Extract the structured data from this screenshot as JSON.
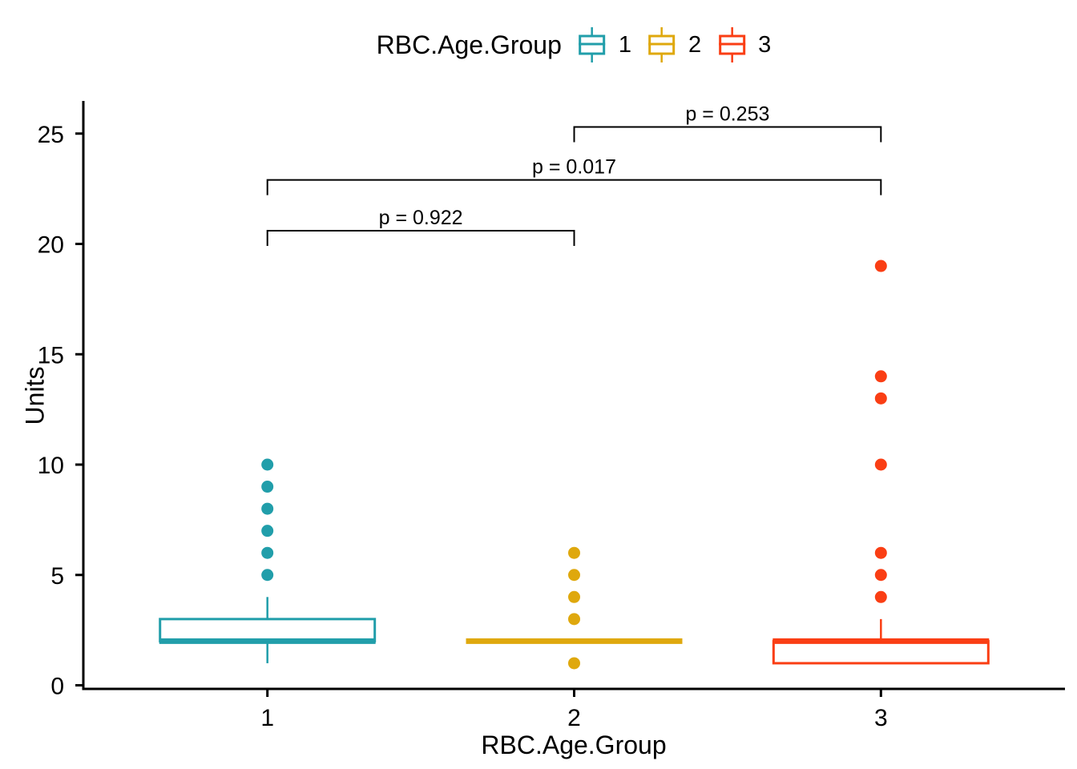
{
  "figure": {
    "background": "#ffffff",
    "text_color": "#000000",
    "legend": {
      "title": "RBC.Age.Group",
      "entries": [
        {
          "label": "1",
          "color": "#219EAA"
        },
        {
          "label": "2",
          "color": "#DFA80D"
        },
        {
          "label": "3",
          "color": "#FA3E14"
        }
      ]
    },
    "x_axis": {
      "title": "RBC.Age.Group"
    },
    "y_axis": {
      "title": "Units"
    }
  },
  "chart_data": {
    "type": "boxplot",
    "title": "",
    "xlabel": "RBC.Age.Group",
    "ylabel": "Units",
    "categories": [
      "1",
      "2",
      "3"
    ],
    "x_tick_labels": [
      "1",
      "2",
      "3"
    ],
    "y_ticks": [
      0,
      5,
      10,
      15,
      20,
      25
    ],
    "ylim": [
      0,
      26.5
    ],
    "grid": false,
    "legend_position": "top",
    "box_width": 0.7,
    "series": [
      {
        "name": "1",
        "color": "#219EAA",
        "whisker_low": 1,
        "q1": 2,
        "median": 2,
        "q3": 3,
        "whisker_high": 4,
        "outliers": [
          5,
          6,
          7,
          8,
          9,
          10
        ]
      },
      {
        "name": "2",
        "color": "#DFA80D",
        "whisker_low": 2,
        "q1": 2,
        "median": 2,
        "q3": 2,
        "whisker_high": 2,
        "outliers": [
          1,
          3,
          4,
          5,
          6
        ]
      },
      {
        "name": "3",
        "color": "#FA3E14",
        "whisker_low": 1,
        "q1": 1,
        "median": 2,
        "q3": 2,
        "whisker_high": 3,
        "outliers": [
          4,
          5,
          6,
          10,
          13,
          14,
          19
        ]
      }
    ],
    "comparisons": [
      {
        "a": "1",
        "b": "2",
        "label": "p = 0.922",
        "y": 20.6
      },
      {
        "a": "1",
        "b": "3",
        "label": "p = 0.017",
        "y": 22.9
      },
      {
        "a": "2",
        "b": "3",
        "label": "p = 0.253",
        "y": 25.3
      }
    ]
  }
}
